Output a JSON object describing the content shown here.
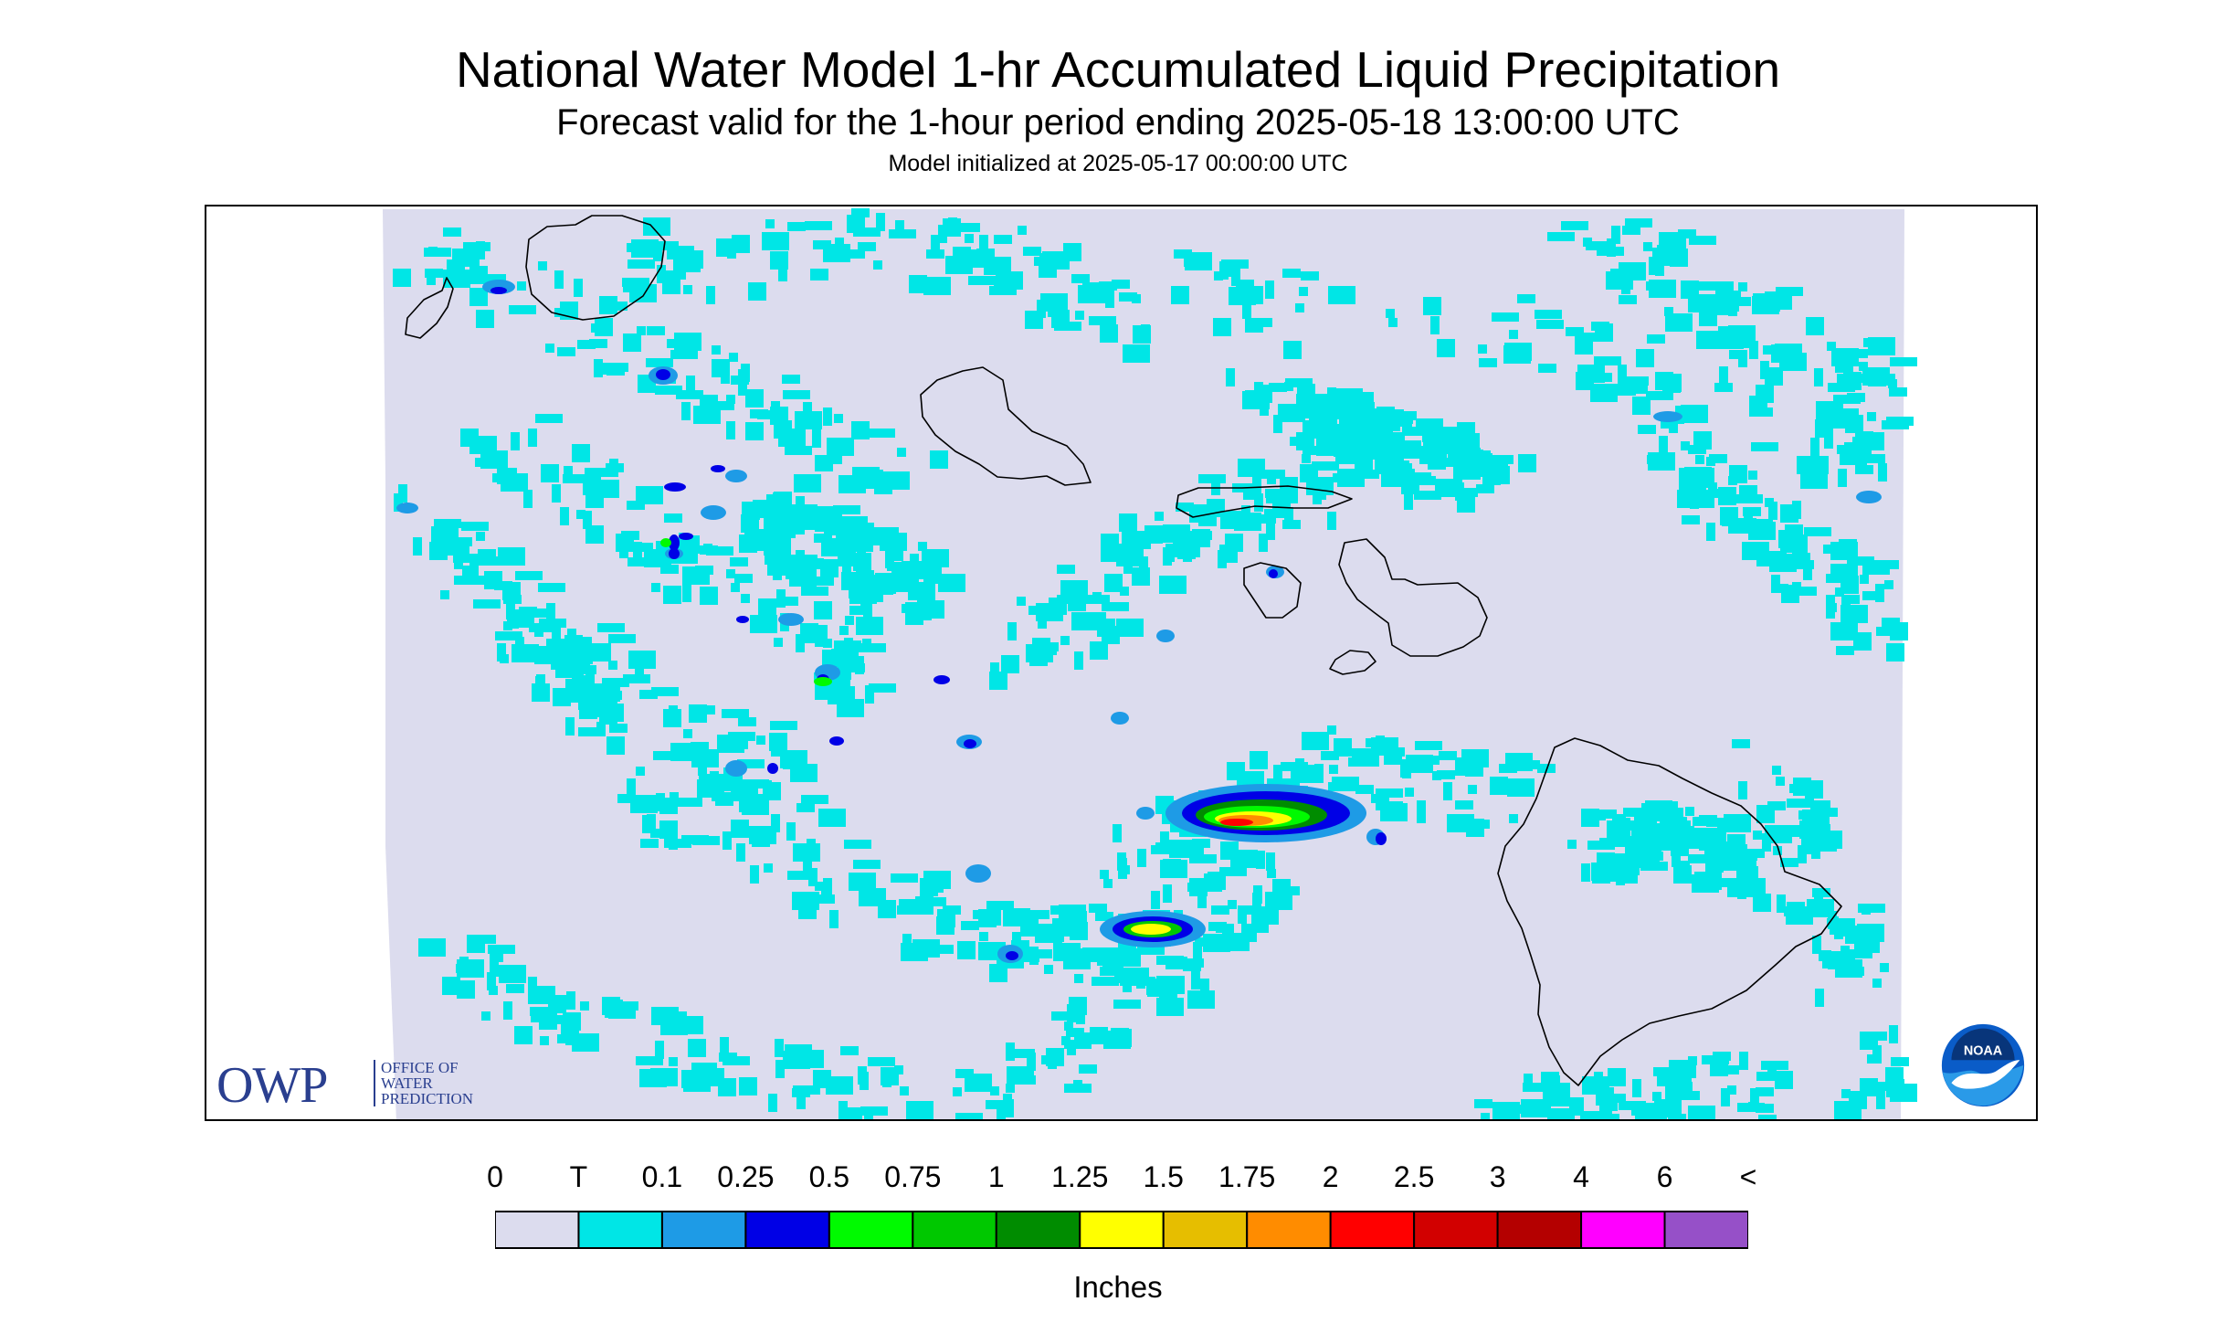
{
  "header": {
    "title": "National Water Model 1-hr Accumulated Liquid Precipitation",
    "subtitle": "Forecast valid for the 1-hour period ending 2025-05-18 13:00:00 UTC",
    "init_line": "Model initialized at 2025-05-17 00:00:00 UTC"
  },
  "logos": {
    "owp_mark": "OWP",
    "owp_text": [
      "OFFICE OF",
      "WATER",
      "PREDICTION"
    ],
    "noaa_mark": "NOAA"
  },
  "legend": {
    "labels": [
      "0",
      "T",
      "0.1",
      "0.25",
      "0.5",
      "0.75",
      "1",
      "1.25",
      "1.5",
      "1.75",
      "2",
      "2.5",
      "3",
      "4",
      "6",
      "<"
    ],
    "colors": [
      "#dcdcee",
      "#00e6e6",
      "#1e9be6",
      "#0000e6",
      "#00fa00",
      "#00c800",
      "#008c00",
      "#ffff00",
      "#e6be00",
      "#ff8c00",
      "#ff0000",
      "#d20000",
      "#b40000",
      "#ff00ff",
      "#9650c8"
    ],
    "units": "Inches"
  },
  "map": {
    "background_color": "#dcdcee",
    "coast_color": "#000000",
    "islands": [
      "Kauai",
      "Niihau",
      "Oahu",
      "Molokai",
      "Lanai",
      "Maui",
      "Kahoolawe",
      "Hawaii"
    ]
  }
}
